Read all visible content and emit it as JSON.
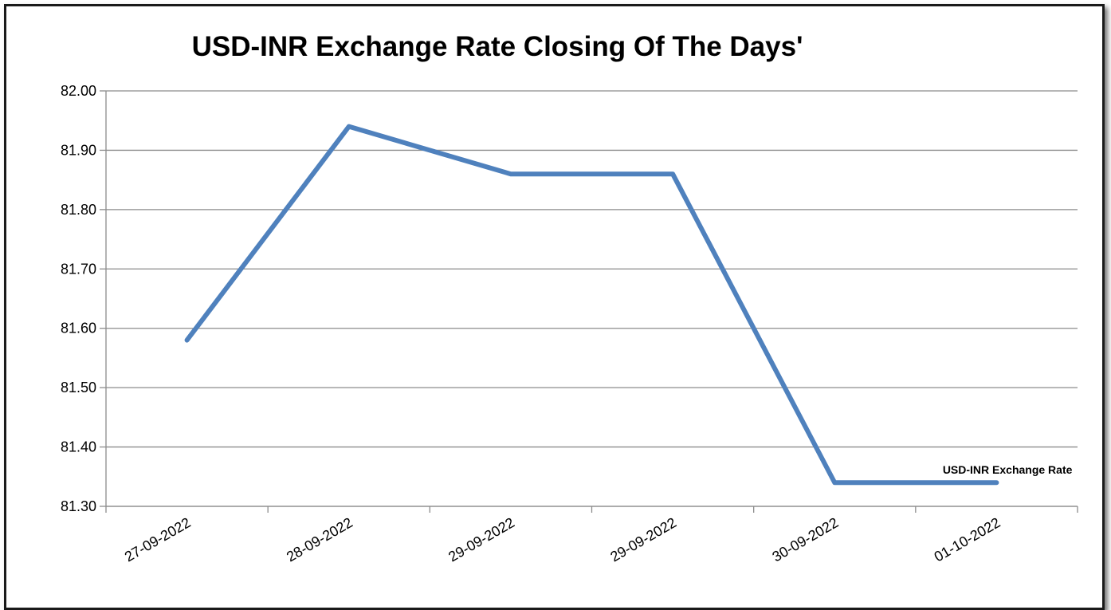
{
  "chart_data": {
    "type": "line",
    "title": "USD-INR Exchange Rate Closing Of The Days'",
    "categories": [
      "27-09-2022",
      "28-09-2022",
      "29-09-2022",
      "29-09-2022",
      "30-09-2022",
      "01-10-2022"
    ],
    "series": [
      {
        "name": "USD-INR Exchange Rate",
        "values": [
          81.58,
          81.94,
          81.86,
          81.86,
          81.34,
          81.34
        ],
        "color": "#4F81BD"
      }
    ],
    "ylim": [
      81.3,
      82.0
    ],
    "yticks": [
      "82.00",
      "81.90",
      "81.80",
      "81.70",
      "81.60",
      "81.50",
      "81.40",
      "81.30"
    ],
    "grid": true,
    "legend": "end-of-line label"
  }
}
